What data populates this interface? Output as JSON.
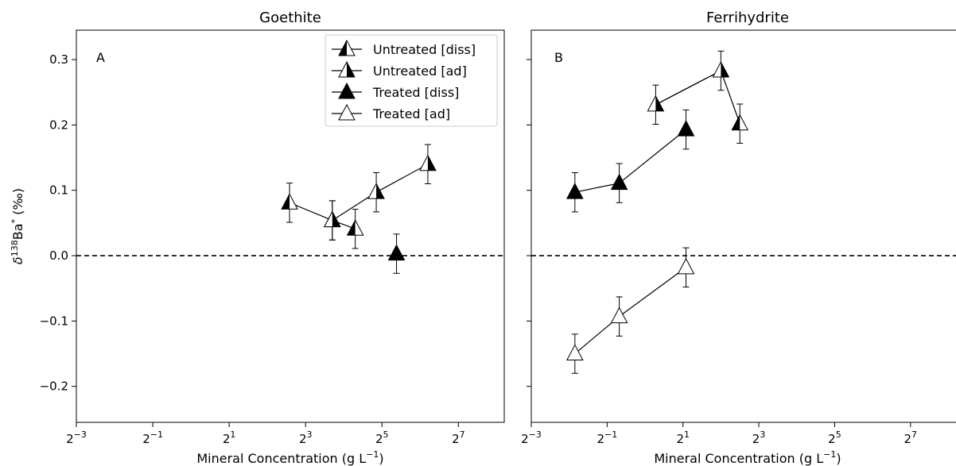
{
  "chart_data": {
    "type": "scatter",
    "y_axis": {
      "label_prefix": "δ",
      "label_sup": "138",
      "label_main": "Ba",
      "label_star": "*",
      "label_unit": " (‰)",
      "ylim": [
        -0.255,
        0.345
      ],
      "ticks": [
        -0.2,
        -0.1,
        0.0,
        0.1,
        0.2,
        0.3
      ],
      "tick_labels": [
        "−0.2",
        "−0.1",
        "0.0",
        "0.1",
        "0.2",
        "0.3"
      ]
    },
    "x_axis": {
      "scale": "log2",
      "xlim_exp": [
        -3,
        8.2
      ],
      "tick_exps": [
        -3,
        -1,
        1,
        3,
        5,
        7
      ],
      "tick_base": "2",
      "tick_exp_labels": [
        "−3",
        "−1",
        "1",
        "3",
        "5",
        "7"
      ],
      "label_main": "Mineral Concentration (g L",
      "label_sup": "−1",
      "label_end": ")"
    },
    "reference_line_y": 0,
    "legend": {
      "placement": "upper-right of panel A",
      "entries": [
        {
          "label": "Untreated [diss]",
          "marker": "half-left"
        },
        {
          "label": "Untreated [ad]",
          "marker": "half-right"
        },
        {
          "label": "Treated [diss]",
          "marker": "filled"
        },
        {
          "label": "Treated [ad]",
          "marker": "open"
        }
      ]
    },
    "panels": [
      {
        "title": "Goethite",
        "letter": "A",
        "series": [
          {
            "marker": "half-left",
            "x_log2": [
              2.58,
              3.7,
              4.3
            ],
            "y": [
              0.081,
              0.054,
              0.041
            ],
            "err": [
              0.03,
              0.03,
              0.03
            ]
          },
          {
            "marker": "filled",
            "x_log2": [
              5.38
            ],
            "y": [
              0.003
            ],
            "err": [
              0.03
            ]
          },
          {
            "marker": "half-right",
            "x_log2": [
              3.7,
              4.85,
              6.2
            ],
            "y": [
              0.054,
              0.097,
              0.14
            ],
            "err": [
              0.03,
              0.03,
              0.03
            ]
          }
        ]
      },
      {
        "title": "Ferrihydrite",
        "letter": "B",
        "series": [
          {
            "marker": "filled",
            "x_log2": [
              -1.85,
              -0.68,
              1.08
            ],
            "y": [
              0.097,
              0.111,
              0.193
            ],
            "err": [
              0.03,
              0.03,
              0.03
            ]
          },
          {
            "marker": "half-right",
            "x_log2": [
              0.28,
              2.0
            ],
            "y": [
              0.231,
              0.283
            ],
            "err": [
              0.03,
              0.03
            ]
          },
          {
            "marker": "half-left",
            "x_log2": [
              2.5
            ],
            "y": [
              0.202
            ],
            "err": [
              0.03
            ]
          },
          {
            "marker": "open",
            "x_log2": [
              -1.85,
              -0.68,
              1.08
            ],
            "y": [
              -0.15,
              -0.093,
              -0.018
            ],
            "err": [
              0.03,
              0.03,
              0.03
            ]
          }
        ],
        "extra_lines": [
          {
            "x_log2": [
              0.28,
              2.0,
              2.5
            ],
            "y": [
              0.231,
              0.283,
              0.202
            ]
          }
        ]
      }
    ]
  }
}
